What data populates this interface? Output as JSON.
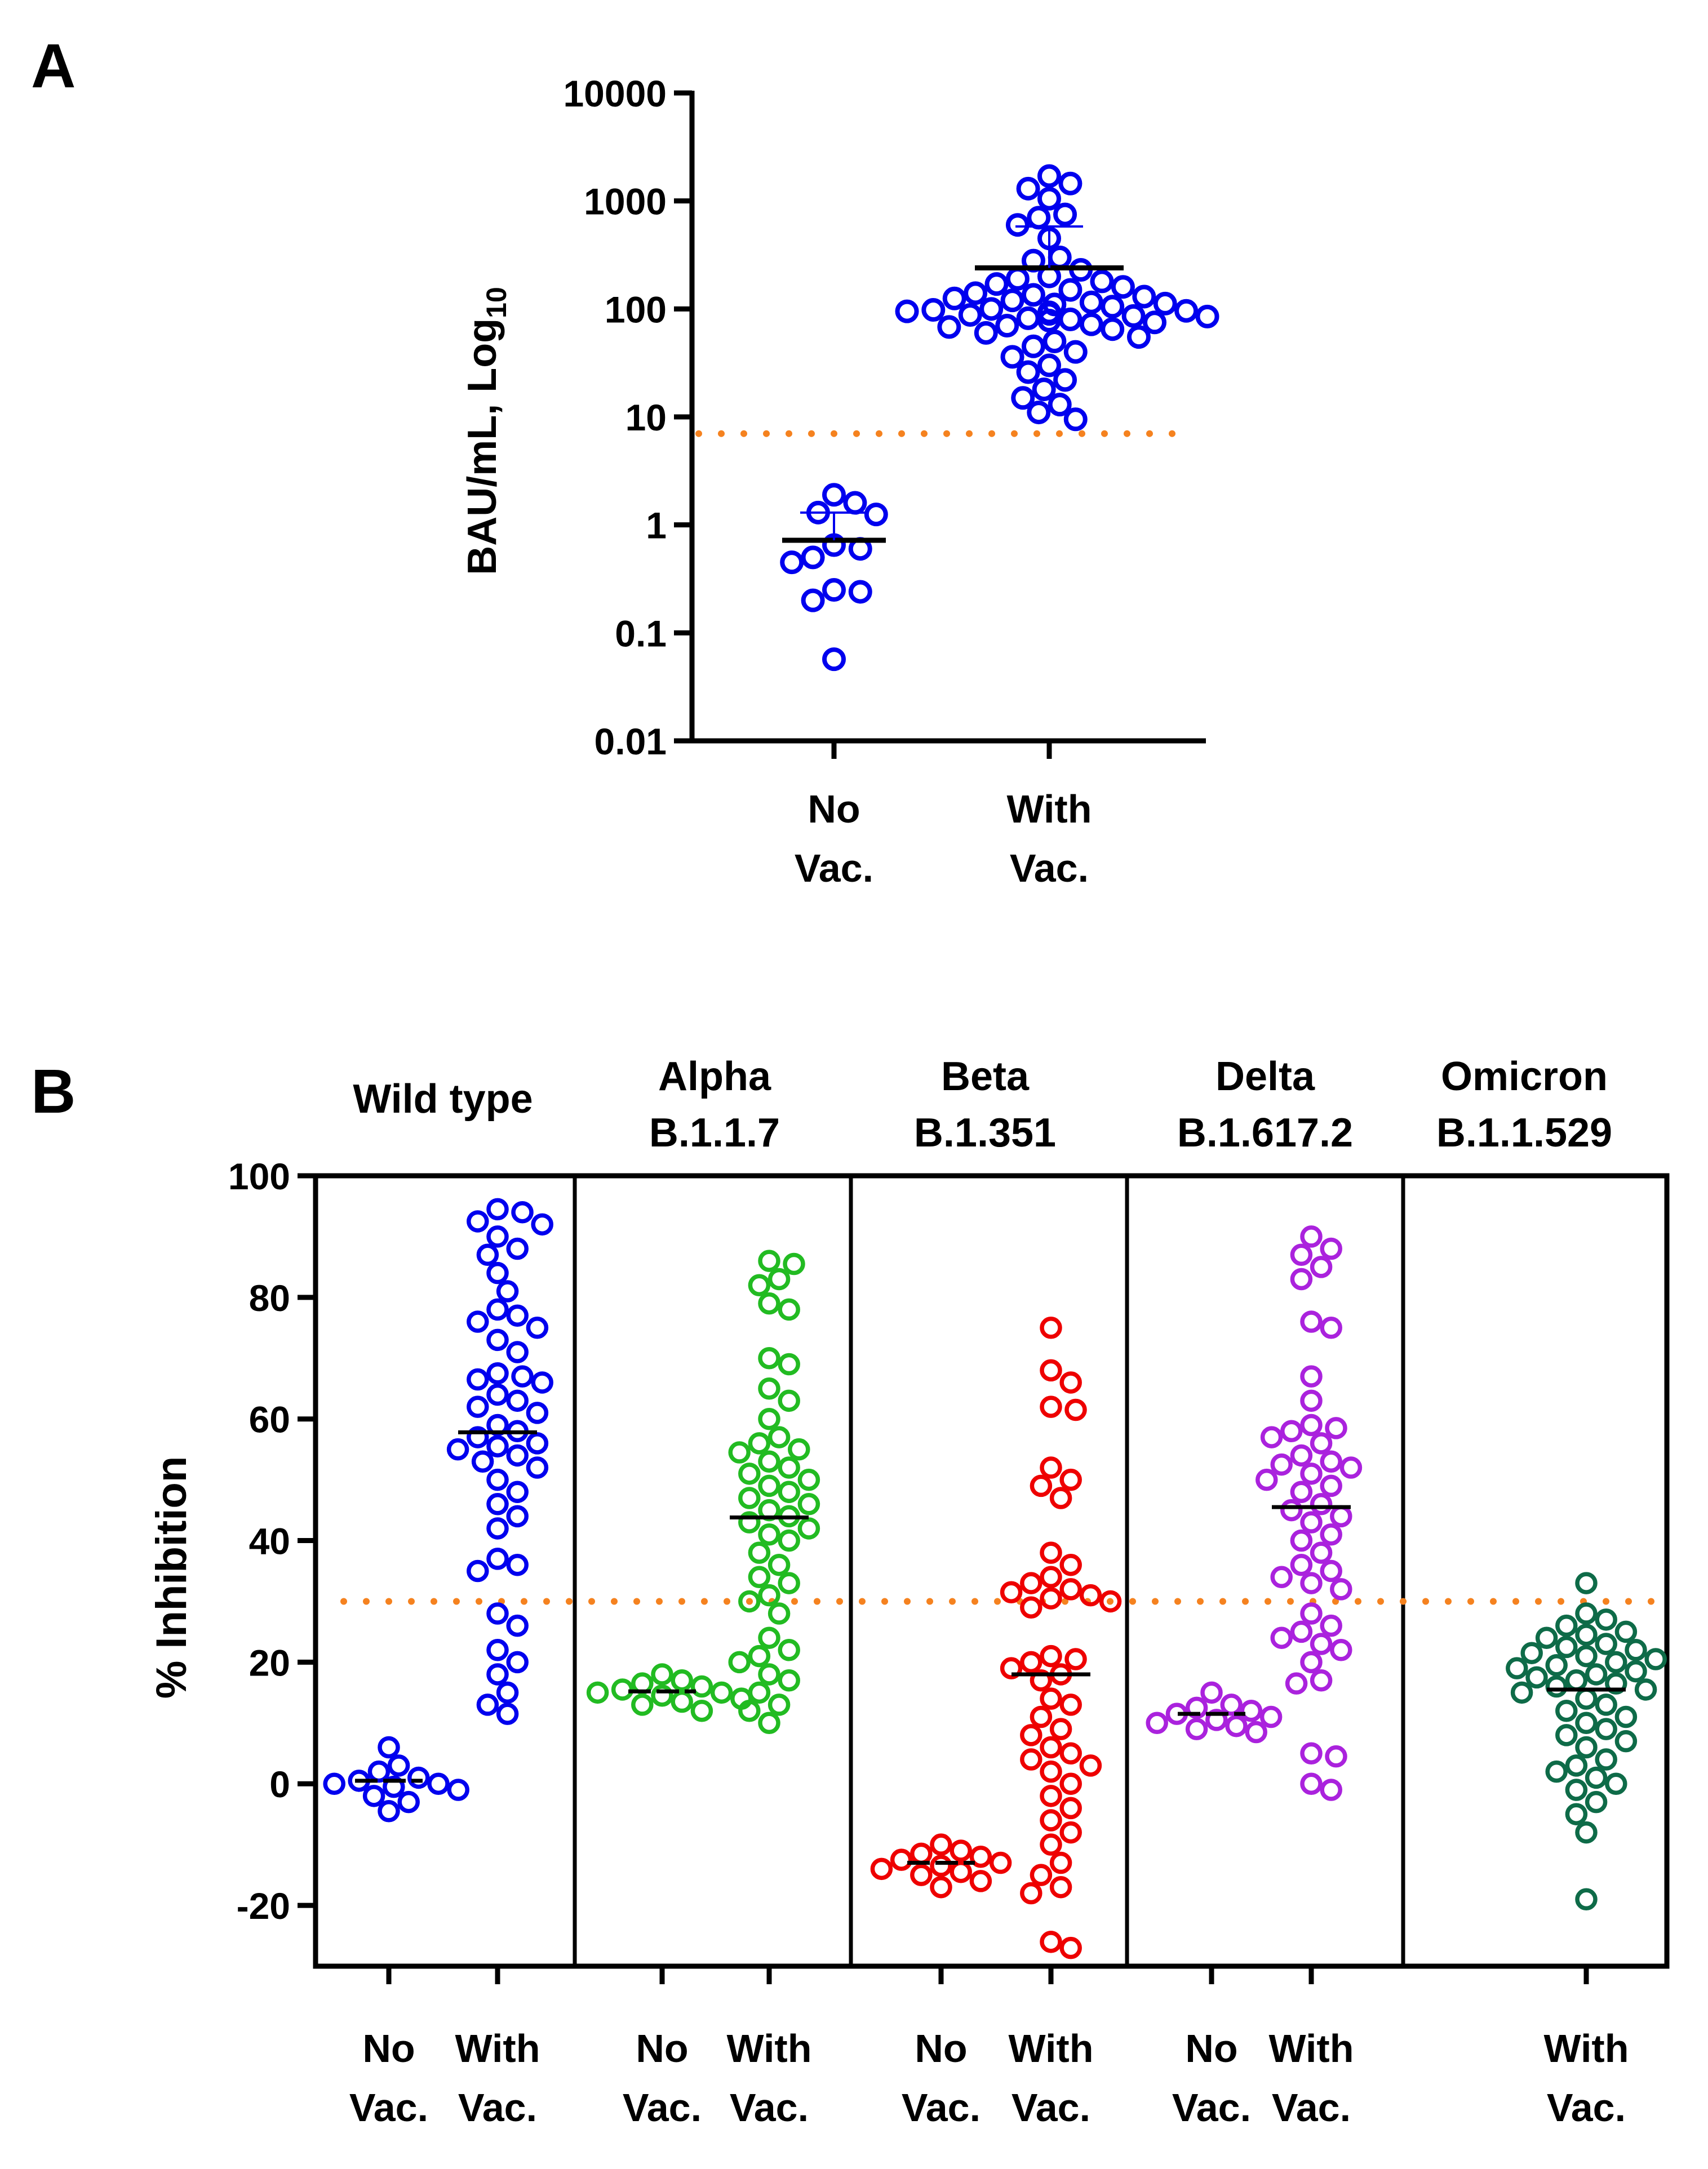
{
  "chart_data": [
    {
      "panel": "A",
      "type": "scatter",
      "yscale": "log10",
      "ylabel_main": "BAU/mL, Log",
      "ylabel_sub": "10",
      "ylim": [
        0.01,
        10000
      ],
      "yticks": [
        "10000",
        "1000",
        "100",
        "10",
        "1",
        "0.1",
        "0.01"
      ],
      "ytick_values": [
        10000,
        1000,
        100,
        10,
        1,
        0.1,
        0.01
      ],
      "threshold": 7,
      "threshold_color": "#f5821f",
      "groups": [
        {
          "label_line1": "No",
          "label_line2": "Vac.",
          "color": "#0000ee",
          "mean": 0.72,
          "sd_upper": 1.3,
          "values": [
            1.9,
            1.6,
            1.3,
            1.25,
            0.65,
            0.6,
            0.5,
            0.45,
            0.25,
            0.24,
            0.2,
            0.057
          ]
        },
        {
          "label_line1": "With",
          "label_line2": "Vac.",
          "color": "#0000ee",
          "mean": 240,
          "sd_upper": 580,
          "values": [
            1700,
            1450,
            1300,
            1050,
            750,
            700,
            600,
            450,
            300,
            280,
            230,
            200,
            190,
            180,
            170,
            160,
            150,
            140,
            135,
            130,
            125,
            120,
            115,
            112,
            110,
            105,
            100,
            98,
            96,
            95,
            93,
            92,
            90,
            88,
            86,
            85,
            82,
            80,
            78,
            75,
            72,
            70,
            68,
            65,
            60,
            55,
            50,
            45,
            40,
            36,
            30,
            26,
            22,
            18,
            15,
            13,
            11,
            9.5
          ]
        }
      ]
    },
    {
      "panel": "B",
      "type": "scatter",
      "ylabel": "% Inhibition",
      "ylim": [
        -30,
        100
      ],
      "yticks": [
        "100",
        "80",
        "60",
        "40",
        "20",
        "0",
        "-20"
      ],
      "ytick_values": [
        100,
        80,
        60,
        40,
        20,
        0,
        -20
      ],
      "threshold": 30,
      "threshold_color": "#f5821f",
      "variants": [
        {
          "title_line1": "Wild type",
          "title_line2": "",
          "color": "#0000ee",
          "groups": [
            {
              "label_line1": "No",
              "label_line2": "Vac.",
              "mean": 0.5,
              "values": [
                6,
                3,
                2,
                1,
                0.5,
                0,
                0,
                -0.5,
                -1,
                -2,
                -3,
                -4.5
              ]
            },
            {
              "label_line1": "With",
              "label_line2": "Vac.",
              "mean": 57.8,
              "values": [
                94.5,
                94,
                92.5,
                92,
                90,
                88,
                87,
                84,
                81,
                78,
                77,
                76,
                75,
                73,
                71,
                67.5,
                67,
                66.5,
                66,
                64,
                63,
                62,
                61,
                59,
                58,
                57,
                56,
                55.5,
                55,
                54,
                53,
                52,
                50,
                48,
                46,
                44,
                42,
                37,
                36,
                35,
                28,
                26,
                22,
                20,
                18,
                15,
                13,
                11.5
              ]
            }
          ]
        },
        {
          "title_line1": "Alpha",
          "title_line2": "B.1.1.7",
          "color": "#22bb22",
          "groups": [
            {
              "label_line1": "No",
              "label_line2": "Vac.",
              "mean": 15.2,
              "values": [
                18,
                17,
                16.5,
                16,
                15.5,
                15,
                15,
                14.5,
                14,
                13.5,
                13,
                12
              ]
            },
            {
              "label_line1": "With",
              "label_line2": "Vac.",
              "mean": 43.8,
              "values": [
                86,
                85.5,
                83,
                82,
                79,
                78,
                70,
                69,
                65,
                63,
                60,
                57,
                56,
                55,
                54.5,
                53,
                52,
                51,
                50,
                49,
                48,
                47,
                46,
                45,
                44,
                43,
                42,
                41,
                40,
                38,
                36,
                34,
                33,
                31,
                30,
                28,
                24,
                22,
                21,
                20,
                18,
                17,
                15,
                13,
                12,
                10
              ]
            }
          ]
        },
        {
          "title_line1": "Beta",
          "title_line2": "B.1.351",
          "color": "#ee0000",
          "groups": [
            {
              "label_line1": "No",
              "label_line2": "Vac.",
              "mean": -13,
              "values": [
                -10,
                -11,
                -11.5,
                -12,
                -12.5,
                -13,
                -13.5,
                -14,
                -14.5,
                -15,
                -16,
                -17
              ]
            },
            {
              "label_line1": "With",
              "label_line2": "Vac.",
              "mean": 18,
              "values": [
                75,
                68,
                66,
                62,
                61.5,
                52,
                50,
                49,
                47,
                38,
                36,
                34,
                33,
                32,
                31.5,
                31,
                30.5,
                30,
                29,
                21,
                20.5,
                20,
                19,
                18,
                17,
                14,
                13,
                11,
                9,
                8,
                6,
                5,
                4,
                3,
                2,
                0,
                -2,
                -4,
                -6,
                -8,
                -10,
                -13,
                -15,
                -17,
                -18,
                -26,
                -27
              ]
            }
          ]
        },
        {
          "title_line1": "Delta",
          "title_line2": "B.1.617.2",
          "color": "#aa22dd",
          "groups": [
            {
              "label_line1": "No",
              "label_line2": "Vac.",
              "mean": 11.5,
              "values": [
                15,
                13,
                12.5,
                12,
                11.5,
                11,
                10.5,
                10,
                9.5,
                9,
                8.5
              ]
            },
            {
              "label_line1": "With",
              "label_line2": "Vac.",
              "mean": 45.5,
              "values": [
                90,
                88,
                87,
                85,
                83,
                76,
                75,
                67,
                63,
                59,
                58.5,
                58,
                57,
                56,
                54,
                53,
                52.5,
                52,
                51,
                50,
                49,
                48,
                46,
                45,
                44,
                43,
                41,
                40,
                38,
                36,
                35,
                34,
                33,
                32,
                28,
                26,
                25,
                24,
                23,
                22,
                20,
                17,
                16.5,
                5,
                4.5,
                0,
                -1
              ]
            }
          ]
        },
        {
          "title_line1": "Omicron",
          "title_line2": "B.1.1.529",
          "color": "#0e6b48",
          "groups": [
            {
              "label_line1": "With",
              "label_line2": "Vac.",
              "mean": 15.5,
              "values": [
                33,
                28,
                27,
                26,
                25,
                24.5,
                24,
                23,
                22.5,
                22,
                21.5,
                21,
                20.5,
                20,
                19.5,
                19,
                18.5,
                18,
                17.5,
                17,
                16.5,
                16,
                15.5,
                15,
                14,
                13,
                12,
                11,
                10,
                9,
                8,
                7,
                6,
                4,
                3,
                2,
                1,
                0,
                -1,
                -3,
                -5,
                -8,
                -19
              ]
            }
          ]
        }
      ]
    }
  ]
}
